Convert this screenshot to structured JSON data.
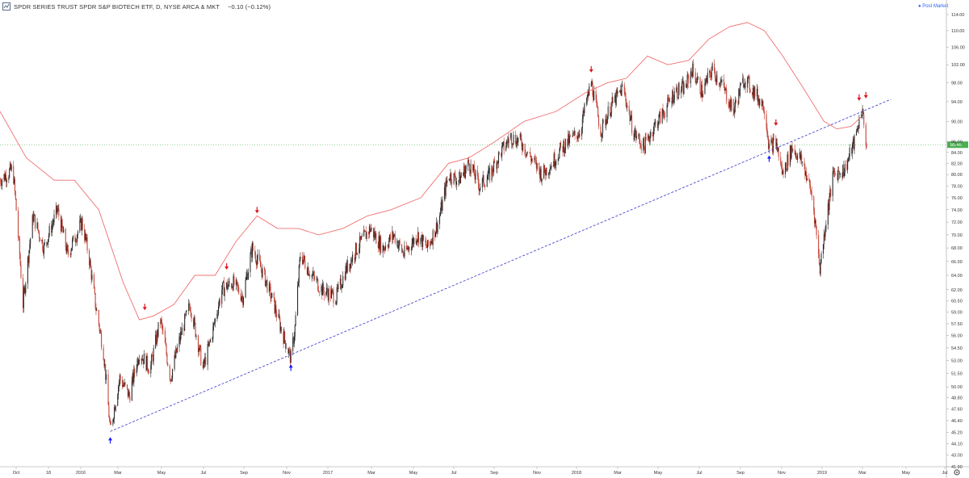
{
  "header": {
    "symbol_title": "SPDR SERIES TRUST SPDR S&P BIOTECH ETF, D, NYSE ARCA & MKT",
    "change": "−0.10 (−0.12%)",
    "postmarket_label": "Post Market"
  },
  "colors": {
    "up_candle": "#1f1f1f",
    "down_candle": "#c0392b",
    "envelope_line": "#f07070",
    "trendline": "#3333cc",
    "arrow_down": "#e0141e",
    "arrow_up": "#1a1aff",
    "last_price_line": "#4caf50",
    "last_price_badge": "#4caf50"
  },
  "icons": {
    "symbol": "logo-icon",
    "settings": "gear-icon"
  },
  "chart_data": {
    "type": "candlestick",
    "title": "SPDR SERIES TRUST SPDR S&P BIOTECH ETF, D, NYSE ARCA & MKT",
    "price_axis": {
      "ticks": [
        "114.00",
        "110.00",
        "106.00",
        "102.00",
        "98.00",
        "94.00",
        "90.00",
        "86.00",
        "84.00",
        "82.00",
        "80.00",
        "78.00",
        "76.00",
        "74.00",
        "72.00",
        "70.00",
        "68.00",
        "66.00",
        "64.00",
        "62.00",
        "60.50",
        "59.00",
        "57.50",
        "56.00",
        "54.50",
        "53.00",
        "51.50",
        "50.00",
        "48.80",
        "47.60",
        "46.40",
        "45.20",
        "44.10",
        "43.00",
        "41.90"
      ],
      "log_scale": true,
      "ylim": [
        41.9,
        114
      ]
    },
    "last_price": "85.46",
    "x_axis": {
      "tick_labels": [
        "Oct",
        "18",
        "2016",
        "Mar",
        "May",
        "Jul",
        "Sep",
        "Nov",
        "2017",
        "Mar",
        "May",
        "Jul",
        "Sep",
        "Nov",
        "2018",
        "Mar",
        "May",
        "Jul",
        "Sep",
        "Nov",
        "2019",
        "Mar",
        "May",
        "Jul"
      ],
      "range": [
        "2015-09",
        "2019-07"
      ]
    },
    "price_path": [
      [
        "2015-09-01",
        79
      ],
      [
        "2015-09-20",
        81
      ],
      [
        "2015-10-05",
        60
      ],
      [
        "2015-10-20",
        73
      ],
      [
        "2015-11-05",
        68
      ],
      [
        "2015-11-25",
        74
      ],
      [
        "2015-12-10",
        67
      ],
      [
        "2015-12-31",
        72
      ],
      [
        "2016-01-10",
        67
      ],
      [
        "2016-01-20",
        60
      ],
      [
        "2016-02-01",
        54
      ],
      [
        "2016-02-11",
        45.3
      ],
      [
        "2016-02-25",
        51
      ],
      [
        "2016-03-10",
        49
      ],
      [
        "2016-03-25",
        54
      ],
      [
        "2016-04-10",
        52
      ],
      [
        "2016-04-25",
        58
      ],
      [
        "2016-05-10",
        51
      ],
      [
        "2016-05-25",
        56
      ],
      [
        "2016-06-08",
        60
      ],
      [
        "2016-06-27",
        52
      ],
      [
        "2016-07-10",
        56
      ],
      [
        "2016-07-25",
        62
      ],
      [
        "2016-08-10",
        63
      ],
      [
        "2016-08-25",
        61
      ],
      [
        "2016-09-08",
        68
      ],
      [
        "2016-09-25",
        64
      ],
      [
        "2016-10-10",
        60
      ],
      [
        "2016-10-20",
        57
      ],
      [
        "2016-11-04",
        53.2
      ],
      [
        "2016-11-10",
        57
      ],
      [
        "2016-11-18",
        67
      ],
      [
        "2016-12-05",
        64
      ],
      [
        "2016-12-20",
        62
      ],
      [
        "2017-01-10",
        61
      ],
      [
        "2017-01-25",
        65
      ],
      [
        "2017-02-10",
        68
      ],
      [
        "2017-03-01",
        71
      ],
      [
        "2017-03-20",
        68
      ],
      [
        "2017-04-05",
        70
      ],
      [
        "2017-04-20",
        67
      ],
      [
        "2017-05-10",
        70
      ],
      [
        "2017-05-25",
        68
      ],
      [
        "2017-06-10",
        72
      ],
      [
        "2017-06-25",
        80
      ],
      [
        "2017-07-10",
        79
      ],
      [
        "2017-07-25",
        82
      ],
      [
        "2017-08-10",
        78
      ],
      [
        "2017-08-25",
        80
      ],
      [
        "2017-09-10",
        84
      ],
      [
        "2017-09-25",
        87
      ],
      [
        "2017-10-10",
        86
      ],
      [
        "2017-10-25",
        83
      ],
      [
        "2017-11-10",
        80
      ],
      [
        "2017-11-25",
        82
      ],
      [
        "2017-12-10",
        85
      ],
      [
        "2018-01-05",
        88
      ],
      [
        "2018-01-22",
        98
      ],
      [
        "2018-02-05",
        88
      ],
      [
        "2018-02-20",
        93
      ],
      [
        "2018-03-10",
        97
      ],
      [
        "2018-03-25",
        88
      ],
      [
        "2018-04-10",
        85
      ],
      [
        "2018-04-25",
        89
      ],
      [
        "2018-05-10",
        92
      ],
      [
        "2018-05-25",
        96
      ],
      [
        "2018-06-10",
        97
      ],
      [
        "2018-06-20",
        101
      ],
      [
        "2018-07-05",
        96
      ],
      [
        "2018-07-20",
        101
      ],
      [
        "2018-08-05",
        97
      ],
      [
        "2018-08-20",
        92
      ],
      [
        "2018-09-05",
        99
      ],
      [
        "2018-09-20",
        96
      ],
      [
        "2018-10-05",
        93
      ],
      [
        "2018-10-12",
        85
      ],
      [
        "2018-10-22",
        86
      ],
      [
        "2018-11-01",
        80
      ],
      [
        "2018-11-15",
        85
      ],
      [
        "2018-12-01",
        82
      ],
      [
        "2018-12-15",
        76
      ],
      [
        "2018-12-26",
        65
      ],
      [
        "2019-01-05",
        73
      ],
      [
        "2019-01-15",
        80
      ],
      [
        "2019-02-01",
        81
      ],
      [
        "2019-02-15",
        86
      ],
      [
        "2019-02-26",
        92.5
      ],
      [
        "2019-03-05",
        85.46
      ]
    ],
    "envelope_upper": [
      [
        "2015-09-01",
        92
      ],
      [
        "2015-10-10",
        83
      ],
      [
        "2015-11-20",
        79
      ],
      [
        "2015-12-20",
        79
      ],
      [
        "2016-01-25",
        74
      ],
      [
        "2016-03-01",
        63
      ],
      [
        "2016-03-25",
        58
      ],
      [
        "2016-04-15",
        58.5
      ],
      [
        "2016-05-15",
        60
      ],
      [
        "2016-06-15",
        64
      ],
      [
        "2016-07-15",
        64
      ],
      [
        "2016-08-15",
        69
      ],
      [
        "2016-09-15",
        73
      ],
      [
        "2016-10-15",
        71
      ],
      [
        "2016-11-15",
        71
      ],
      [
        "2016-12-15",
        70
      ],
      [
        "2017-01-20",
        71
      ],
      [
        "2017-02-25",
        73
      ],
      [
        "2017-04-01",
        74
      ],
      [
        "2017-05-15",
        76
      ],
      [
        "2017-06-25",
        82
      ],
      [
        "2017-07-25",
        83
      ],
      [
        "2017-09-01",
        86
      ],
      [
        "2017-10-15",
        90
      ],
      [
        "2017-12-01",
        92
      ],
      [
        "2018-01-15",
        96
      ],
      [
        "2018-02-15",
        98
      ],
      [
        "2018-03-15",
        99
      ],
      [
        "2018-04-15",
        104
      ],
      [
        "2018-05-15",
        102
      ],
      [
        "2018-06-15",
        103
      ],
      [
        "2018-07-15",
        108
      ],
      [
        "2018-08-15",
        111
      ],
      [
        "2018-09-10",
        112
      ],
      [
        "2018-10-05",
        110
      ],
      [
        "2018-11-01",
        104
      ],
      [
        "2018-12-01",
        97
      ],
      [
        "2019-01-01",
        90
      ],
      [
        "2019-01-20",
        88.5
      ],
      [
        "2019-02-10",
        89
      ],
      [
        "2019-02-26",
        91
      ]
    ],
    "trendline": {
      "from": [
        "2016-02-11",
        45.3
      ],
      "to": [
        "2019-04-10",
        94.5
      ]
    },
    "signals": [
      {
        "type": "up",
        "date": "2016-02-11",
        "price": 45.3
      },
      {
        "type": "down",
        "date": "2016-04-02",
        "price": 58.5
      },
      {
        "type": "down",
        "date": "2016-08-01",
        "price": 64
      },
      {
        "type": "down",
        "date": "2016-09-15",
        "price": 72.5
      },
      {
        "type": "up",
        "date": "2016-11-04",
        "price": 53.2
      },
      {
        "type": "down",
        "date": "2018-01-22",
        "price": 99
      },
      {
        "type": "up",
        "date": "2018-10-12",
        "price": 84.5
      },
      {
        "type": "down",
        "date": "2018-10-22",
        "price": 88
      },
      {
        "type": "down",
        "date": "2019-02-22",
        "price": 93
      },
      {
        "type": "down",
        "date": "2019-03-04",
        "price": 93.5
      }
    ]
  }
}
